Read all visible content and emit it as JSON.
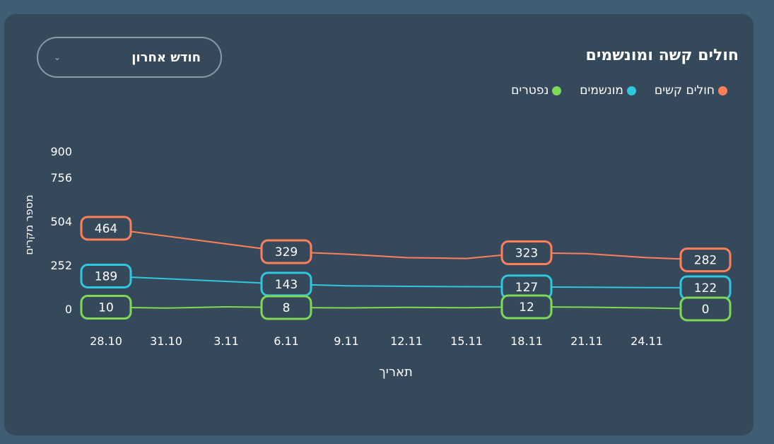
{
  "chart_data": {
    "type": "line",
    "title": "חולים קשה ומונשמים",
    "xlabel": "תאריך",
    "ylabel": "מספר מקרים",
    "y_ticks": [
      "0",
      "252",
      "504",
      "756",
      "900"
    ],
    "ylim": [
      0,
      900
    ],
    "x_ticks": [
      "28.10",
      "31.10",
      "3.11",
      "6.11",
      "9.11",
      "12.11",
      "15.11",
      "18.11",
      "21.11",
      "24.11"
    ],
    "grid": false,
    "legend_position": "top-right",
    "series": [
      {
        "name": "חולים קשים",
        "color": "#ff7f5a",
        "x": [
          "28.10",
          "6.11",
          "9.11",
          "12.11",
          "15.11",
          "18.11",
          "21.11",
          "24.11",
          "27.11"
        ],
        "values": [
          464,
          329,
          315,
          295,
          290,
          323,
          318,
          295,
          282
        ],
        "labels": [
          {
            "x": "28.10",
            "value": "464"
          },
          {
            "x": "6.11",
            "value": "329"
          },
          {
            "x": "18.11",
            "value": "323"
          },
          {
            "x": "27.11",
            "value": "282"
          }
        ]
      },
      {
        "name": "מונשמים",
        "color": "#2ec8e0",
        "x": [
          "28.10",
          "6.11",
          "9.11",
          "12.11",
          "15.11",
          "18.11",
          "21.11",
          "24.11",
          "27.11"
        ],
        "values": [
          189,
          143,
          133,
          130,
          128,
          127,
          125,
          123,
          122
        ],
        "labels": [
          {
            "x": "28.10",
            "value": "189"
          },
          {
            "x": "6.11",
            "value": "143"
          },
          {
            "x": "18.11",
            "value": "127"
          },
          {
            "x": "27.11",
            "value": "122"
          }
        ]
      },
      {
        "name": "נפטרים",
        "color": "#7ed957",
        "x": [
          "28.10",
          "31.10",
          "3.11",
          "6.11",
          "9.11",
          "12.11",
          "15.11",
          "18.11",
          "21.11",
          "24.11",
          "27.11"
        ],
        "values": [
          10,
          5,
          12,
          8,
          6,
          9,
          7,
          12,
          10,
          6,
          0
        ],
        "labels": [
          {
            "x": "28.10",
            "value": "10"
          },
          {
            "x": "6.11",
            "value": "8"
          },
          {
            "x": "18.11",
            "value": "12"
          },
          {
            "x": "27.11",
            "value": "0"
          }
        ]
      }
    ]
  },
  "filter": {
    "selected": "חודש אחרון",
    "icon": "chevron-down-icon"
  }
}
